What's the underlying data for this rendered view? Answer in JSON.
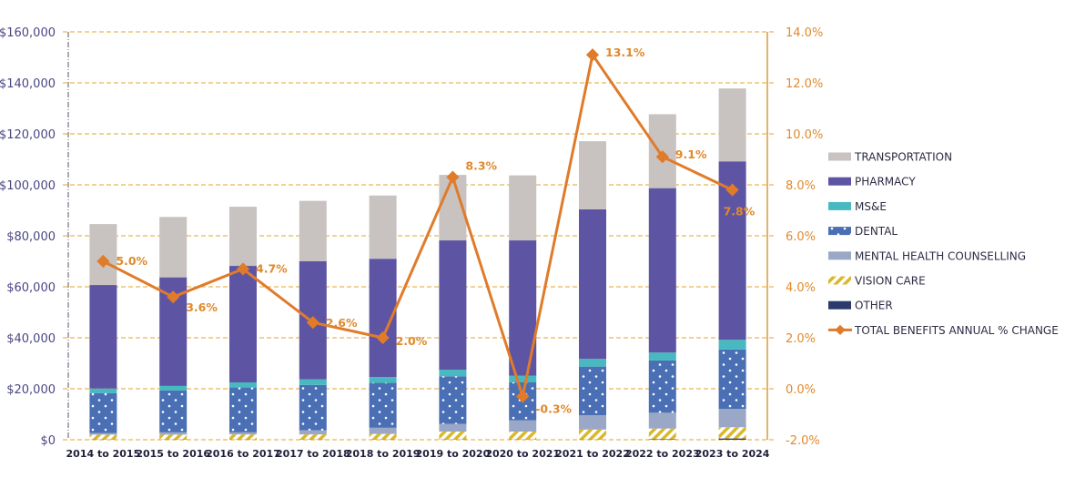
{
  "chart_data": {
    "type": "bar",
    "stacked": true,
    "title": "",
    "xlabel": "",
    "ylabel": "",
    "y2label": "",
    "categories": [
      "2014 to 2015",
      "2015 to 2016",
      "2016 to 2017",
      "2017 to 2018",
      "2018 to 2019",
      "2019 to 2020",
      "2020 to 2021",
      "2021 to 2022",
      "2022 to 2023",
      "2023 to 2024"
    ],
    "ylim": [
      0,
      160000
    ],
    "yticks": [
      "$0",
      "$20,000",
      "$40,000",
      "$60,000",
      "$80,000",
      "$100,000",
      "$120,000",
      "$140,000",
      "$160,000"
    ],
    "y2lim": [
      -2.0,
      14.0
    ],
    "y2ticks": [
      "-2.0%",
      "0.0%",
      "2.0%",
      "4.0%",
      "6.0%",
      "8.0%",
      "10.0%",
      "12.0%",
      "14.0%"
    ],
    "grid": true,
    "legend_position": "right",
    "series": [
      {
        "name": "OTHER",
        "kind": "bar",
        "color": "#2b3a6b",
        "pattern": "solid",
        "values": [
          100,
          100,
          100,
          100,
          100,
          100,
          100,
          100,
          200,
          500
        ]
      },
      {
        "name": "VISION CARE",
        "kind": "bar",
        "color": "#d9b82a",
        "pattern": "hatch",
        "values": [
          1900,
          1900,
          2000,
          2000,
          2200,
          3100,
          3100,
          3900,
          4200,
          4400
        ]
      },
      {
        "name": "MENTAL HEALTH COUNSELLING",
        "kind": "bar",
        "color": "#9aa7c6",
        "pattern": "solid",
        "values": [
          600,
          900,
          800,
          1600,
          2400,
          3000,
          4400,
          5600,
          6200,
          7200
        ]
      },
      {
        "name": "DENTAL",
        "kind": "bar",
        "color": "#4a6fb5",
        "pattern": "dots",
        "values": [
          15700,
          16400,
          17600,
          17800,
          17600,
          18700,
          14900,
          19100,
          20500,
          23300
        ]
      },
      {
        "name": "MS&E",
        "kind": "bar",
        "color": "#48b9c0",
        "pattern": "solid",
        "values": [
          1800,
          1800,
          2000,
          2200,
          2300,
          2600,
          2600,
          3000,
          3100,
          3800
        ]
      },
      {
        "name": "PHARMACY",
        "kind": "bar",
        "color": "#5e54a4",
        "pattern": "solid",
        "values": [
          40600,
          42600,
          45700,
          46300,
          46400,
          50700,
          53100,
          58700,
          64500,
          70000
        ]
      },
      {
        "name": "TRANSPORTATION",
        "kind": "bar",
        "color": "#c8c2c0",
        "pattern": "solid",
        "values": [
          23900,
          23700,
          23200,
          23700,
          24800,
          25700,
          25500,
          26700,
          29000,
          28600
        ]
      },
      {
        "name": "TOTAL BENEFITS ANNUAL % CHANGE",
        "kind": "line",
        "axis": "right",
        "color": "#e07b2a",
        "values": [
          5.0,
          3.6,
          4.7,
          2.6,
          2.0,
          8.3,
          -0.3,
          13.1,
          9.1,
          7.8
        ],
        "labels": [
          "5.0%",
          "3.6%",
          "4.7%",
          "2.6%",
          "2.0%",
          "8.3%",
          "-0.3%",
          "13.1%",
          "9.1%",
          "7.8%"
        ]
      }
    ],
    "legend_order": [
      "TRANSPORTATION",
      "PHARMACY",
      "MS&E",
      "DENTAL",
      "MENTAL HEALTH COUNSELLING",
      "VISION CARE",
      "OTHER",
      "TOTAL BENEFITS ANNUAL % CHANGE"
    ]
  }
}
